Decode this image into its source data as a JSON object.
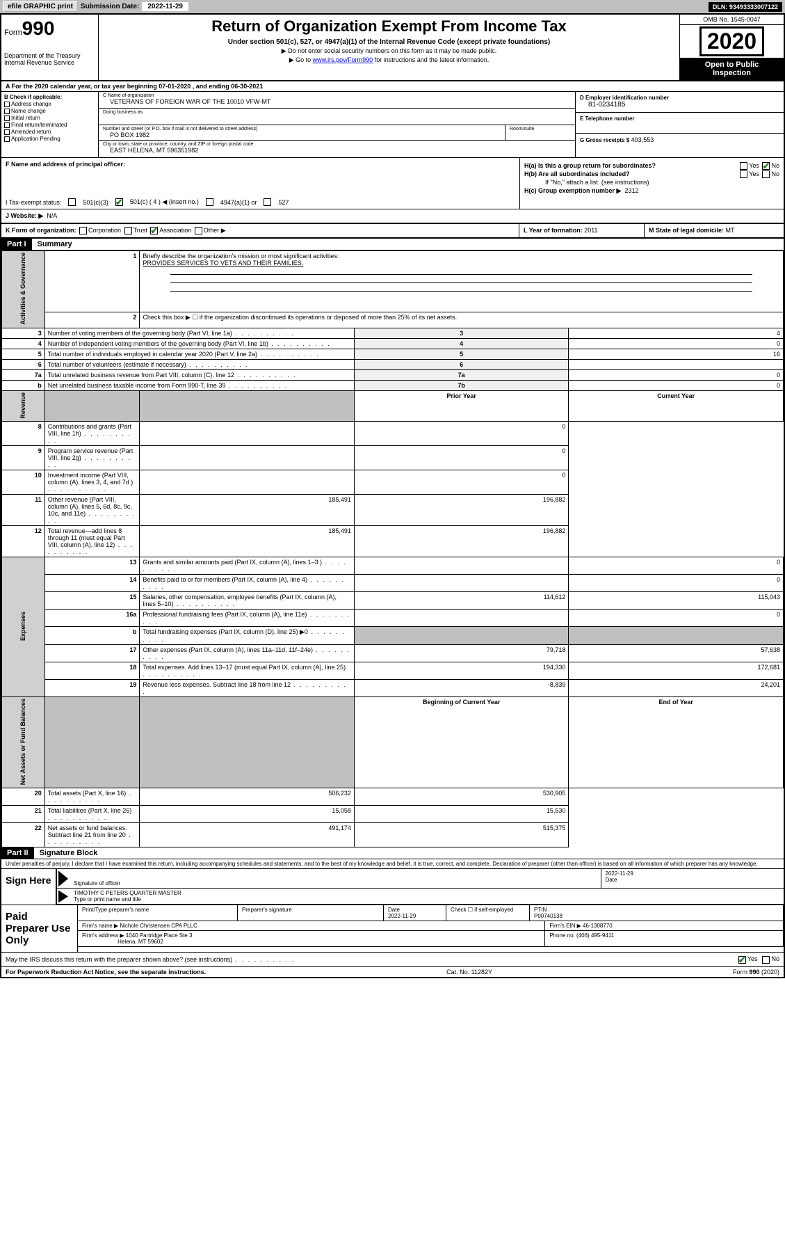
{
  "topbar": {
    "efile": "efile GRAPHIC print",
    "sub_label": "Submission Date:",
    "sub_date": "2022-11-29",
    "dln": "DLN: 93493333007122"
  },
  "header": {
    "form_word": "Form",
    "form_num": "990",
    "dept1": "Department of the Treasury",
    "dept2": "Internal Revenue Service",
    "title": "Return of Organization Exempt From Income Tax",
    "sub1": "Under section 501(c), 527, or 4947(a)(1) of the Internal Revenue Code (except private foundations)",
    "sub2": "▶ Do not enter social security numbers on this form as it may be made public.",
    "sub3_pre": "▶ Go to ",
    "sub3_link": "www.irs.gov/Form990",
    "sub3_post": " for instructions and the latest information.",
    "omb": "OMB No. 1545-0047",
    "year": "2020",
    "inspect1": "Open to Public",
    "inspect2": "Inspection"
  },
  "row_a": "A For the 2020 calendar year, or tax year beginning 07-01-2020   , and ending 06-30-2021",
  "col_b": {
    "hdr": "B Check if applicable:",
    "items": [
      "Address change",
      "Name change",
      "Initial return",
      "Final return/terminated",
      "Amended return",
      "Application Pending"
    ]
  },
  "col_c": {
    "name_lbl": "C Name of organization",
    "name_val": "VETERANS OF FOREIGN WAR OF THE 10010 VFW-MT",
    "dba_lbl": "Doing business as",
    "dba_val": "",
    "street_lbl": "Number and street (or P.O. box if mail is not delivered to street address)",
    "street_val": "PO BOX 1982",
    "room_lbl": "Room/suite",
    "city_lbl": "City or town, state or province, country, and ZIP or foreign postal code",
    "city_val": "EAST HELENA, MT  596351982"
  },
  "col_d": {
    "ein_lbl": "D Employer identification number",
    "ein_val": "81-0234185",
    "tel_lbl": "E Telephone number",
    "tel_val": "",
    "gross_lbl": "G Gross receipts $",
    "gross_val": "403,553"
  },
  "section_f": {
    "lbl": "F Name and address of principal officer:",
    "val": ""
  },
  "section_h": {
    "ha": "H(a)  Is this a group return for subordinates?",
    "hb": "H(b)  Are all subordinates included?",
    "hb_note": "If \"No,\" attach a list. (see instructions)",
    "hc": "H(c)  Group exemption number ▶",
    "hc_val": "2312",
    "yes": "Yes",
    "no": "No"
  },
  "tax_status": {
    "lbl": "I   Tax-exempt status:",
    "c3": "501(c)(3)",
    "c": "501(c) ( 4 ) ◀ (insert no.)",
    "a1": "4947(a)(1) or",
    "527": "527"
  },
  "row_j": {
    "lbl": "J   Website: ▶",
    "val": "N/A"
  },
  "row_k": {
    "lbl": "K Form of organization:",
    "corp": "Corporation",
    "trust": "Trust",
    "assoc": "Association",
    "other": "Other ▶"
  },
  "row_l": {
    "lbl": "L Year of formation:",
    "val": "2011"
  },
  "row_m": {
    "lbl": "M State of legal domicile:",
    "val": "MT"
  },
  "part1": {
    "hdr": "Part I",
    "title": "Summary",
    "q1_lbl": "Briefly describe the organization's mission or most significant activities:",
    "q1_val": "PROVIDES SERVICES TO VETS AND THEIR FAMILIES.",
    "q2": "Check this box ▶ ☐  if the organization discontinued its operations or disposed of more than 25% of its net assets.",
    "side_gov": "Activities & Governance",
    "side_rev": "Revenue",
    "side_exp": "Expenses",
    "side_net": "Net Assets or Fund Balances",
    "prior": "Prior Year",
    "current": "Current Year",
    "begin": "Beginning of Current Year",
    "end": "End of Year",
    "rows_gov": [
      {
        "n": "3",
        "d": "Number of voting members of the governing body (Part VI, line 1a)",
        "sn": "3",
        "v": "4"
      },
      {
        "n": "4",
        "d": "Number of independent voting members of the governing body (Part VI, line 1b)",
        "sn": "4",
        "v": "0"
      },
      {
        "n": "5",
        "d": "Total number of individuals employed in calendar year 2020 (Part V, line 2a)",
        "sn": "5",
        "v": "16"
      },
      {
        "n": "6",
        "d": "Total number of volunteers (estimate if necessary)",
        "sn": "6",
        "v": ""
      },
      {
        "n": "7a",
        "d": "Total unrelated business revenue from Part VIII, column (C), line 12",
        "sn": "7a",
        "v": "0"
      },
      {
        "n": "b",
        "d": "Net unrelated business taxable income from Form 990-T, line 39",
        "sn": "7b",
        "v": "0"
      }
    ],
    "rows_rev": [
      {
        "n": "8",
        "d": "Contributions and grants (Part VIII, line 1h)",
        "p": "",
        "c": "0"
      },
      {
        "n": "9",
        "d": "Program service revenue (Part VIII, line 2g)",
        "p": "",
        "c": "0"
      },
      {
        "n": "10",
        "d": "Investment income (Part VIII, column (A), lines 3, 4, and 7d )",
        "p": "",
        "c": "0"
      },
      {
        "n": "11",
        "d": "Other revenue (Part VIII, column (A), lines 5, 6d, 8c, 9c, 10c, and 11e)",
        "p": "185,491",
        "c": "196,882"
      },
      {
        "n": "12",
        "d": "Total revenue—add lines 8 through 11 (must equal Part VIII, column (A), line 12)",
        "p": "185,491",
        "c": "196,882"
      }
    ],
    "rows_exp": [
      {
        "n": "13",
        "d": "Grants and similar amounts paid (Part IX, column (A), lines 1–3 )",
        "p": "",
        "c": "0"
      },
      {
        "n": "14",
        "d": "Benefits paid to or for members (Part IX, column (A), line 4)",
        "p": "",
        "c": "0"
      },
      {
        "n": "15",
        "d": "Salaries, other compensation, employee benefits (Part IX, column (A), lines 5–10)",
        "p": "114,612",
        "c": "115,043"
      },
      {
        "n": "16a",
        "d": "Professional fundraising fees (Part IX, column (A), line 11e)",
        "p": "",
        "c": "0"
      },
      {
        "n": "b",
        "d": "Total fundraising expenses (Part IX, column (D), line 25) ▶0",
        "p": "—shaded—",
        "c": "—shaded—"
      },
      {
        "n": "17",
        "d": "Other expenses (Part IX, column (A), lines 11a–11d, 11f–24e)",
        "p": "79,718",
        "c": "57,638"
      },
      {
        "n": "18",
        "d": "Total expenses. Add lines 13–17 (must equal Part IX, column (A), line 25)",
        "p": "194,330",
        "c": "172,681"
      },
      {
        "n": "19",
        "d": "Revenue less expenses. Subtract line 18 from line 12",
        "p": "-8,839",
        "c": "24,201"
      }
    ],
    "rows_net": [
      {
        "n": "20",
        "d": "Total assets (Part X, line 16)",
        "p": "506,232",
        "c": "530,905"
      },
      {
        "n": "21",
        "d": "Total liabilities (Part X, line 26)",
        "p": "15,058",
        "c": "15,530"
      },
      {
        "n": "22",
        "d": "Net assets or fund balances. Subtract line 21 from line 20",
        "p": "491,174",
        "c": "515,375"
      }
    ]
  },
  "part2": {
    "hdr": "Part II",
    "title": "Signature Block",
    "decl": "Under penalties of perjury, I declare that I have examined this return, including accompanying schedules and statements, and to the best of my knowledge and belief, it is true, correct, and complete. Declaration of preparer (other than officer) is based on all information of which preparer has any knowledge.",
    "sign_here": "Sign Here",
    "sig_off": "Signature of officer",
    "sig_date_lbl": "Date",
    "sig_date": "2022-11-29",
    "sig_name": "TIMOTHY C PETERS  QUARTER MASTER",
    "sig_name_lbl": "Type or print name and title",
    "paid": "Paid Preparer Use Only",
    "p_name_lbl": "Print/Type preparer's name",
    "p_sig_lbl": "Preparer's signature",
    "p_date_lbl": "Date",
    "p_date": "2022-11-29",
    "p_check": "Check ☐ if self-employed",
    "ptin_lbl": "PTIN",
    "ptin": "P00740138",
    "firm_name_lbl": "Firm's name     ▶",
    "firm_name": "Nichole Christensen CPA PLLC",
    "firm_ein_lbl": "Firm's EIN ▶",
    "firm_ein": "46-1308770",
    "firm_addr_lbl": "Firm's address ▶",
    "firm_addr1": "1040 Partridge Place Ste 3",
    "firm_addr2": "Helena, MT  59602",
    "phone_lbl": "Phone no.",
    "phone": "(406) 495-9411",
    "discuss": "May the IRS discuss this return with the preparer shown above? (see instructions)",
    "yes": "Yes",
    "no": "No"
  },
  "footer": {
    "left": "For Paperwork Reduction Act Notice, see the separate instructions.",
    "mid": "Cat. No. 11282Y",
    "right": "Form 990 (2020)"
  }
}
